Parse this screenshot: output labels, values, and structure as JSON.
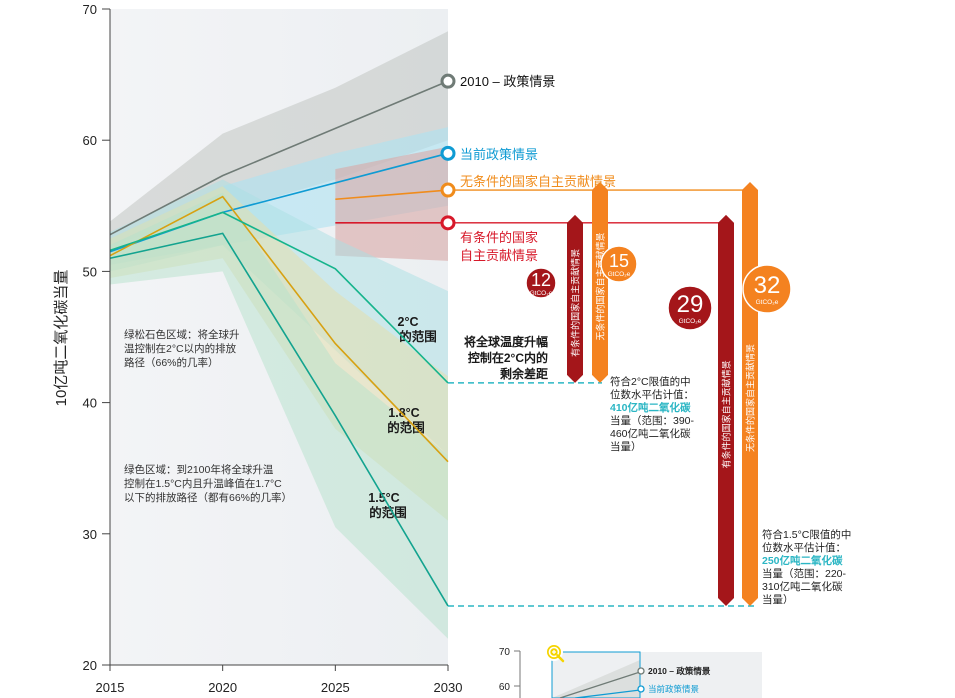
{
  "chart_data": {
    "type": "line",
    "title": "",
    "xlabel": "",
    "ylabel": "10亿吨二氧化碳当量",
    "xlim": [
      2015,
      2030
    ],
    "ylim": [
      20,
      70
    ],
    "x_ticks": [
      "2015",
      "2020",
      "2025",
      "2030"
    ],
    "y_ticks": [
      "20",
      "30",
      "40",
      "50",
      "60",
      "70"
    ],
    "series": [
      {
        "name": "2010 – 政策情景",
        "color": "#6f7b76",
        "x": [
          2015,
          2020,
          2030
        ],
        "y": [
          52.8,
          57.3,
          64.5
        ]
      },
      {
        "name": "当前政策情景",
        "color": "#0f9bd3",
        "x": [
          2015,
          2020,
          2030
        ],
        "y": [
          51.5,
          54.5,
          59.0
        ]
      },
      {
        "name": "无条件的国家自主贡献情景",
        "color": "#f08c1c",
        "x": [
          2025,
          2030
        ],
        "y": [
          55.5,
          56.2
        ]
      },
      {
        "name": "有条件的国家自主贡献情景",
        "color": "#d7192a",
        "x": [
          2025,
          2030
        ],
        "y": [
          53.7,
          53.7
        ]
      },
      {
        "name": "",
        "color": "#d7a112",
        "x": [
          2015,
          2020,
          2025,
          2030
        ],
        "y": [
          51.2,
          55.7,
          44.5,
          35.5
        ]
      },
      {
        "name": "",
        "color": "#16b48c",
        "x": [
          2015,
          2020,
          2025,
          2030
        ],
        "y": [
          51.6,
          54.5,
          50.2,
          41.5
        ]
      },
      {
        "name": "",
        "color": "#13a38f",
        "x": [
          2015,
          2020,
          2025,
          2030
        ],
        "y": [
          51.0,
          52.9,
          39.0,
          24.5
        ]
      }
    ],
    "bands": [
      {
        "name": "2010 policy range",
        "color": "#b9bdb9",
        "opacity": 0.45,
        "x": [
          2015,
          2020,
          2025,
          2030
        ],
        "low": [
          52.0,
          54.5,
          57.0,
          60.0
        ],
        "high": [
          53.8,
          60.5,
          64.0,
          68.3
        ]
      },
      {
        "name": "current policy range",
        "color": "#aee3f2",
        "opacity": 0.6,
        "x": [
          2015,
          2020,
          2025,
          2030
        ],
        "low": [
          50.5,
          52.0,
          53.5,
          55.0
        ],
        "high": [
          52.5,
          56.5,
          59.0,
          61.0
        ]
      },
      {
        "name": "NDC range",
        "color": "#d9a9a6",
        "opacity": 0.6,
        "x": [
          2025,
          2030
        ],
        "low": [
          51.2,
          50.8
        ],
        "high": [
          57.8,
          59.5
        ]
      },
      {
        "name": "2°C range",
        "color": "#a9dfe4",
        "opacity": 0.5,
        "x": [
          2015,
          2020,
          2025,
          2030
        ],
        "low": [
          50.0,
          52.0,
          44.0,
          36.0
        ],
        "high": [
          53.0,
          57.0,
          52.5,
          48.5
        ]
      },
      {
        "name": "1.8°C range",
        "color": "#e4dfad",
        "opacity": 0.55,
        "x": [
          2015,
          2020,
          2025,
          2030
        ],
        "low": [
          49.5,
          51.0,
          38.0,
          31.0
        ],
        "high": [
          52.5,
          56.5,
          48.5,
          42.0
        ]
      },
      {
        "name": "1.5°C range",
        "color": "#b5e1cb",
        "opacity": 0.5,
        "x": [
          2015,
          2020,
          2025,
          2030
        ],
        "low": [
          49.0,
          50.0,
          30.5,
          22.0
        ],
        "high": [
          52.0,
          56.0,
          43.0,
          36.0
        ]
      }
    ],
    "labels": {
      "policy2010": "2010 – 政策情景",
      "current": "当前政策情景",
      "unconditional": "无条件的国家自主贡献情景",
      "conditional_1": "有条件的国家",
      "conditional_2": "自主贡献情景",
      "range2c_1": "2°C",
      "range2c_2": "的范围",
      "range18_1": "1.8°C",
      "range18_2": "的范围",
      "range15_1": "1.5°C",
      "range15_2": "的范围",
      "gap_1": "将全球温度升幅",
      "gap_2": "控制在2°C内的",
      "gap_3": "剩余差距",
      "note_2c_1": "绿松石色区域：将全球升",
      "note_2c_2": "温控制在2°C以内的排放",
      "note_2c_3": "路径（66%的几率）",
      "note_15_1": "绿色区域：到2100年将全球升温",
      "note_15_2": "控制在1.5°C内且升温峰值在1.7°C",
      "note_15_3": "以下的排放路径（都有66%的几率）",
      "median2c_1": "符合2°C限值的中",
      "median2c_2": "位数水平估计值：",
      "median2c_3": "410亿吨二氧化碳",
      "median2c_4": "当量（范围：390-",
      "median2c_5": "460亿吨二氧化碳",
      "median2c_6": "当量）",
      "median15_1": "符合1.5°C限值的中",
      "median15_2": "位数水平估计值：",
      "median15_3": "250亿吨二氧化碳",
      "median15_4": "当量（范围：220-",
      "median15_5": "310亿吨二氧化碳",
      "median15_6": "当量）"
    },
    "gaps": [
      {
        "label": "有条件的国家自主贡献情景",
        "value": "12",
        "unit": "GtCO₂e",
        "color": "#a4161a",
        "from": 53.7,
        "to": 41.5,
        "target": "2°C"
      },
      {
        "label": "无条件的国家自主贡献情景",
        "value": "15",
        "unit": "GtCO₂e",
        "color": "#f48220",
        "from": 56.2,
        "to": 41.5,
        "target": "2°C"
      },
      {
        "label": "有条件的国家自主贡献情景",
        "value": "29",
        "unit": "GtCO₂e",
        "color": "#a4161a",
        "from": 53.7,
        "to": 24.5,
        "target": "1.5°C"
      },
      {
        "label": "无条件的国家自主贡献情景",
        "value": "32",
        "unit": "GtCO₂e",
        "color": "#f48220",
        "from": 56.2,
        "to": 24.5,
        "target": "1.5°C"
      }
    ],
    "reference_lines": [
      {
        "value": 41.5,
        "color": "#2bb6c4",
        "style": "dashed"
      },
      {
        "value": 24.5,
        "color": "#2bb6c4",
        "style": "dashed"
      }
    ],
    "inset": {
      "y_ticks": [
        "60",
        "70"
      ],
      "labels": [
        "2010 – 政策情景",
        "当前政策情景"
      ],
      "icon": "zoom-in-icon"
    }
  }
}
